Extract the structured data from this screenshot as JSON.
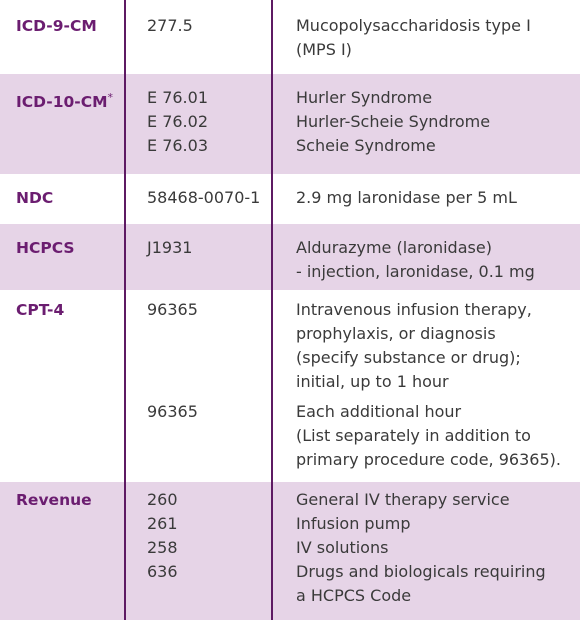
{
  "table": {
    "rows": [
      {
        "code": "ICD-9-CM",
        "entries": [
          {
            "code": "277.5",
            "lines": [
              "Mucopolysaccharidosis type I",
              "(MPS I)"
            ]
          }
        ]
      },
      {
        "code": "ICD-10-CM",
        "code_note": "*",
        "entries": [
          {
            "code": "E 76.01",
            "lines": [
              "Hurler Syndrome"
            ]
          },
          {
            "code": "E 76.02",
            "lines": [
              "Hurler-Scheie Syndrome"
            ]
          },
          {
            "code": "E 76.03",
            "lines": [
              "Scheie Syndrome"
            ]
          }
        ]
      },
      {
        "code": "NDC",
        "entries": [
          {
            "code": "58468-0070-1",
            "lines": [
              "2.9 mg laronidase per 5 mL"
            ]
          }
        ]
      },
      {
        "code": "HCPCS",
        "entries": [
          {
            "code": "J1931",
            "lines": [
              "Aldurazyme (laronidase)",
              "- injection, laronidase, 0.1 mg"
            ]
          }
        ]
      },
      {
        "code": "CPT-4",
        "entries": [
          {
            "code": "96365",
            "lines": [
              "Intravenous infusion therapy,",
              "prophylaxis, or diagnosis",
              "(specify substance or drug);",
              "initial, up to 1 hour"
            ]
          },
          {
            "code": "96365",
            "lines": [
              "Each additional hour",
              "(List separately in addition to",
              "primary procedure code, 96365)."
            ]
          }
        ]
      },
      {
        "code": "Revenue",
        "entries": [
          {
            "code": "260",
            "lines": [
              "General IV therapy service"
            ]
          },
          {
            "code": "261",
            "lines": [
              "Infusion pump"
            ]
          },
          {
            "code": "258",
            "lines": [
              "IV solutions"
            ]
          },
          {
            "code": "636",
            "lines": [
              "Drugs and biologicals requiring",
              "a HCPCS Code"
            ]
          }
        ]
      }
    ]
  }
}
